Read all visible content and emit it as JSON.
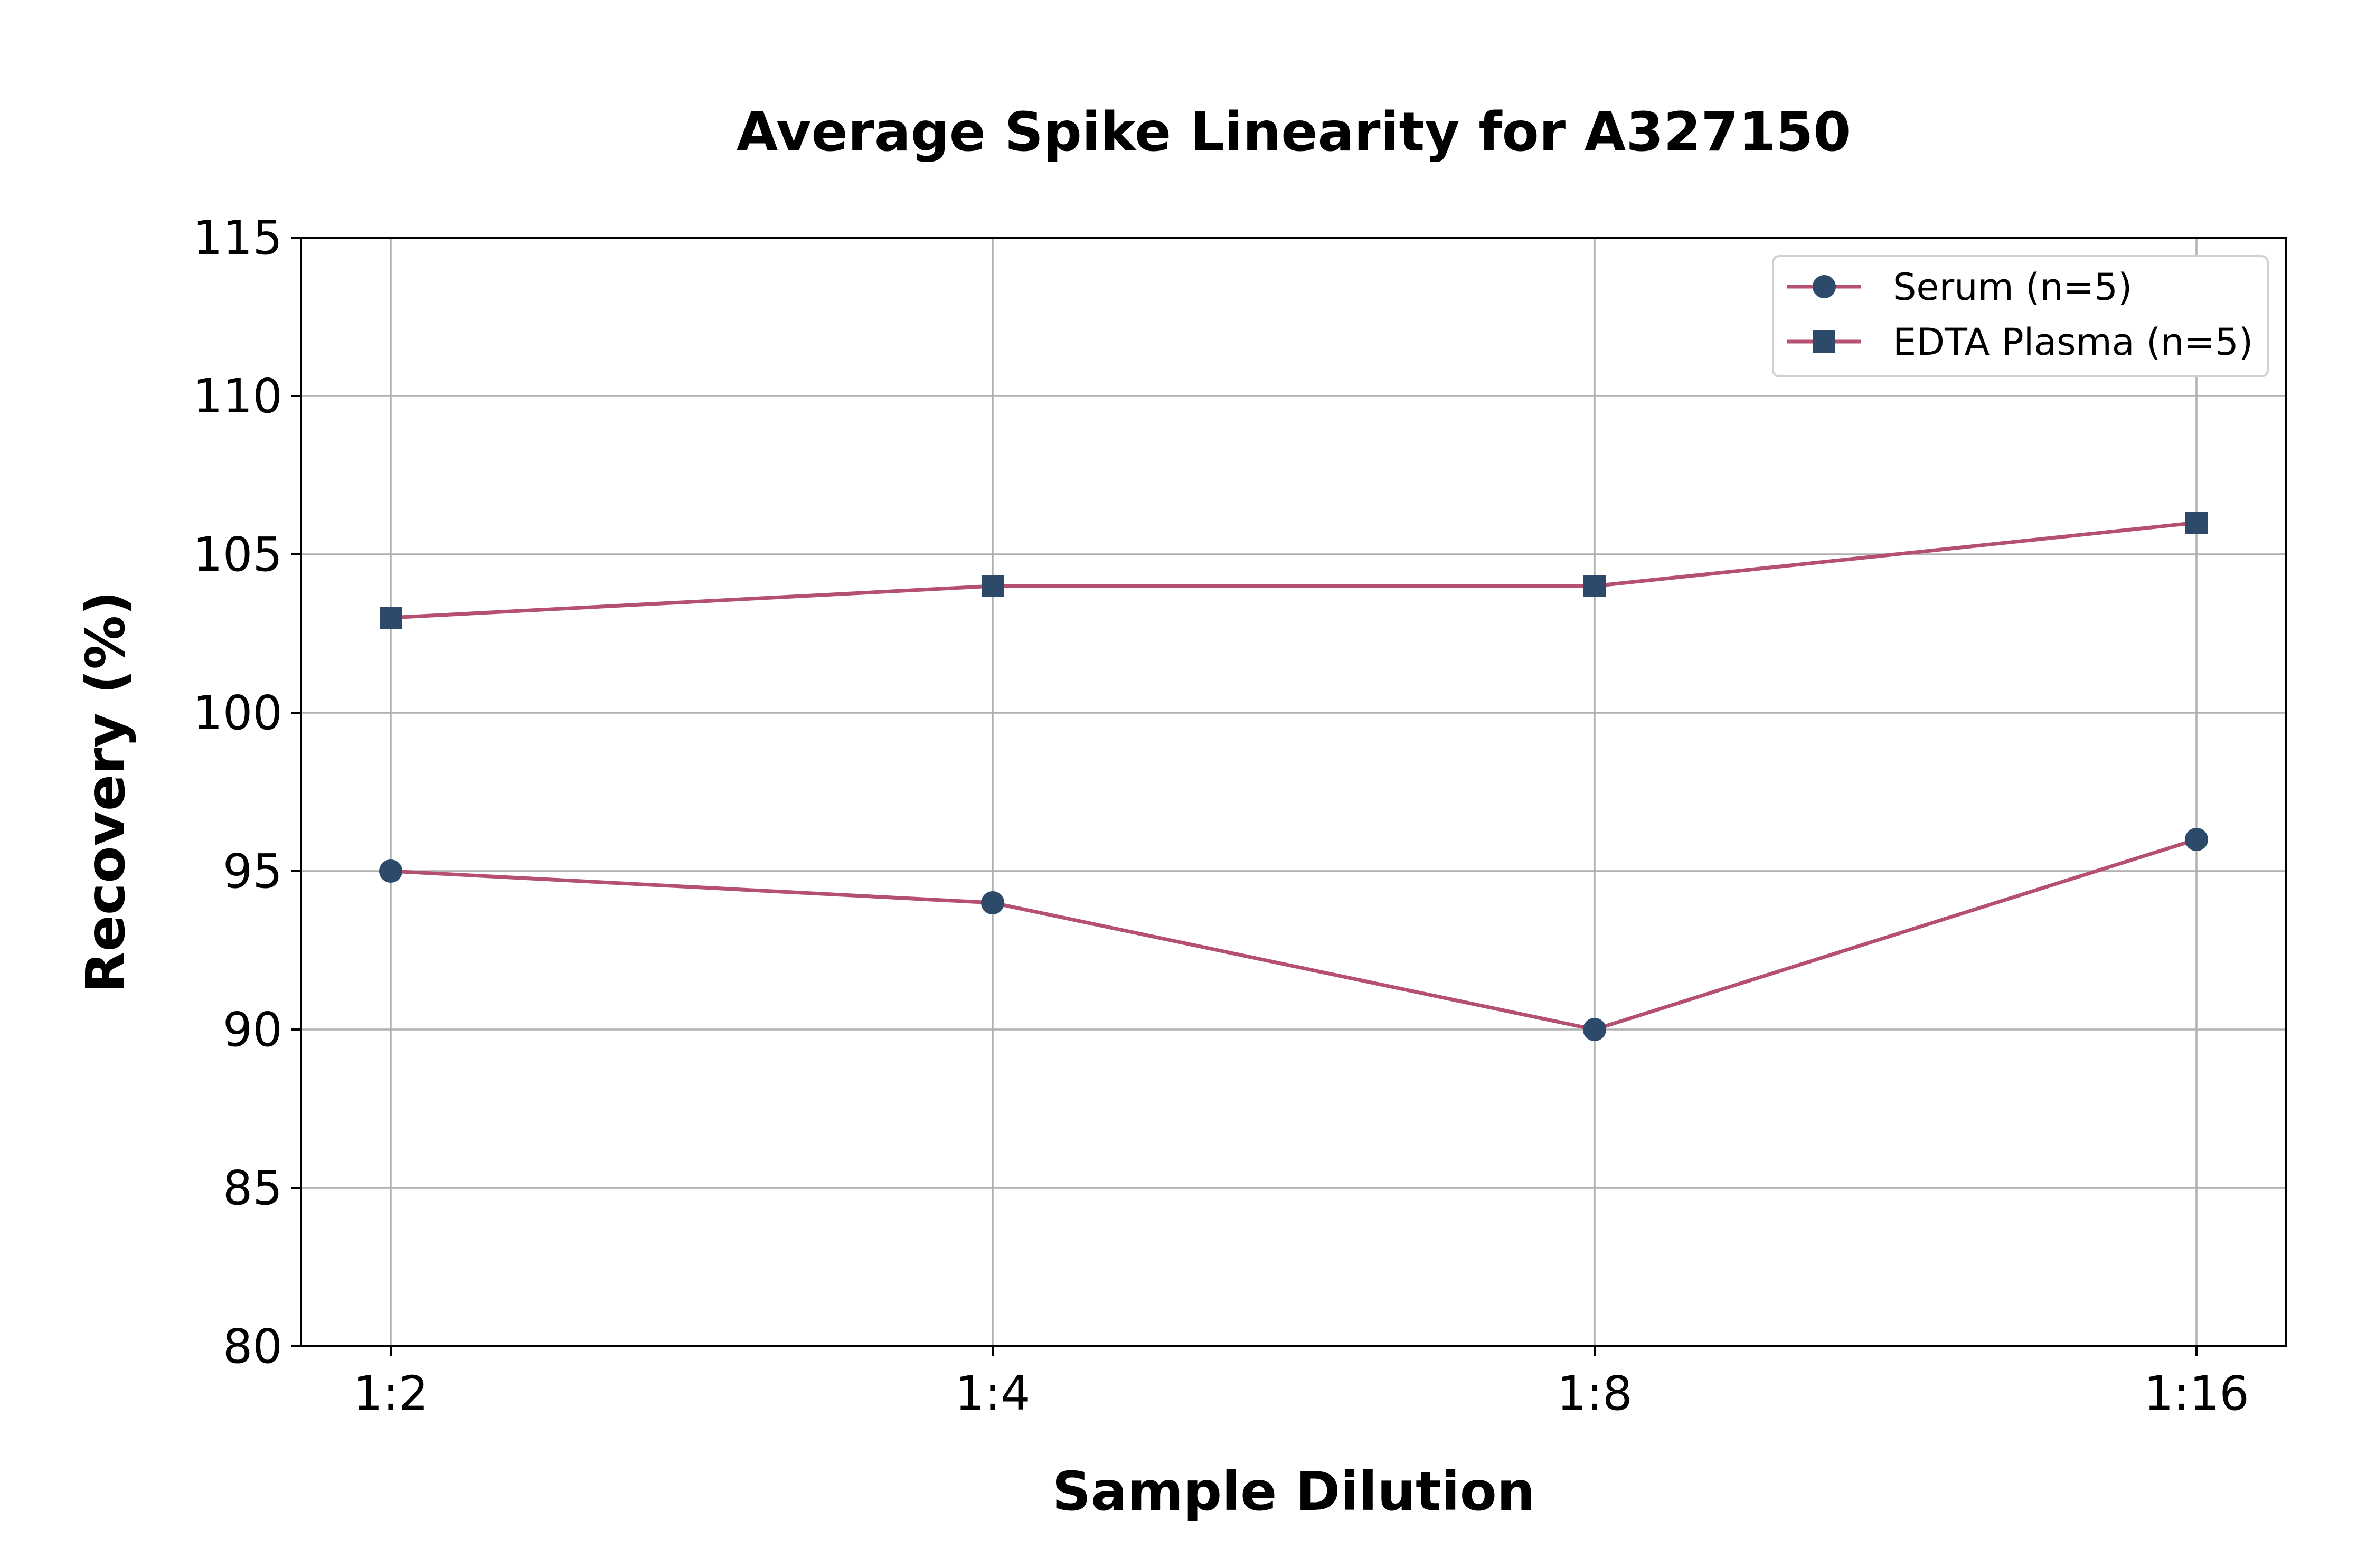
{
  "chart_data": {
    "type": "line",
    "title": "Average Spike Linearity for A327150",
    "xlabel": "Sample Dilution",
    "ylabel": "Recovery (%)",
    "categories": [
      "1:2",
      "1:4",
      "1:8",
      "1:16"
    ],
    "ylim": [
      80,
      115
    ],
    "yticks": [
      80,
      85,
      90,
      95,
      100,
      105,
      110,
      115
    ],
    "grid": true,
    "legend_position": "top-right",
    "series": [
      {
        "name": "Serum (n=5)",
        "values": [
          95,
          94,
          90,
          96
        ],
        "marker": "circle"
      },
      {
        "name": "EDTA Plasma (n=5)",
        "values": [
          103,
          104,
          104,
          106
        ],
        "marker": "square"
      }
    ],
    "colors": {
      "line": "#b5506f",
      "marker": "#2e4a6b",
      "grid": "#b0b0b0",
      "axis": "#000000"
    }
  }
}
